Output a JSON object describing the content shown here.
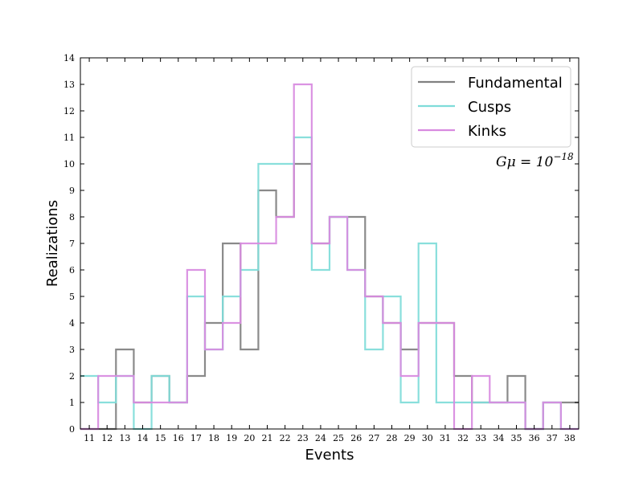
{
  "chart_data": {
    "type": "histogram-step",
    "xlabel": "Events",
    "ylabel": "Realizations",
    "xlim": [
      10.5,
      38.5
    ],
    "ylim": [
      0,
      14
    ],
    "x_ticks": [
      11,
      12,
      13,
      14,
      15,
      16,
      17,
      18,
      19,
      20,
      21,
      22,
      23,
      24,
      25,
      26,
      27,
      28,
      29,
      30,
      31,
      32,
      33,
      34,
      35,
      36,
      37,
      38
    ],
    "y_ticks": [
      0,
      1,
      2,
      3,
      4,
      5,
      6,
      7,
      8,
      9,
      10,
      11,
      12,
      13,
      14
    ],
    "legend_position": "top-right",
    "annotation": {
      "text": "Gμ = 10",
      "exponent": "−18"
    },
    "series": [
      {
        "name": "Fundamental",
        "color": "#808080",
        "values": [
          0,
          0,
          3,
          1,
          2,
          1,
          2,
          4,
          7,
          3,
          9,
          8,
          10,
          7,
          8,
          8,
          5,
          4,
          3,
          4,
          4,
          2,
          1,
          1,
          2,
          0,
          1,
          1
        ]
      },
      {
        "name": "Cusps",
        "color": "#7fdcd9",
        "values": [
          2,
          1,
          2,
          0,
          2,
          1,
          5,
          3,
          5,
          6,
          10,
          10,
          11,
          6,
          8,
          6,
          3,
          5,
          1,
          7,
          1,
          1,
          1,
          1,
          1,
          0,
          1,
          0
        ]
      },
      {
        "name": "Kinks",
        "color": "#d88ae0",
        "values": [
          0,
          2,
          2,
          1,
          1,
          1,
          6,
          3,
          4,
          7,
          7,
          8,
          13,
          7,
          8,
          6,
          5,
          4,
          2,
          4,
          4,
          0,
          2,
          1,
          1,
          0,
          1,
          0
        ]
      }
    ]
  }
}
